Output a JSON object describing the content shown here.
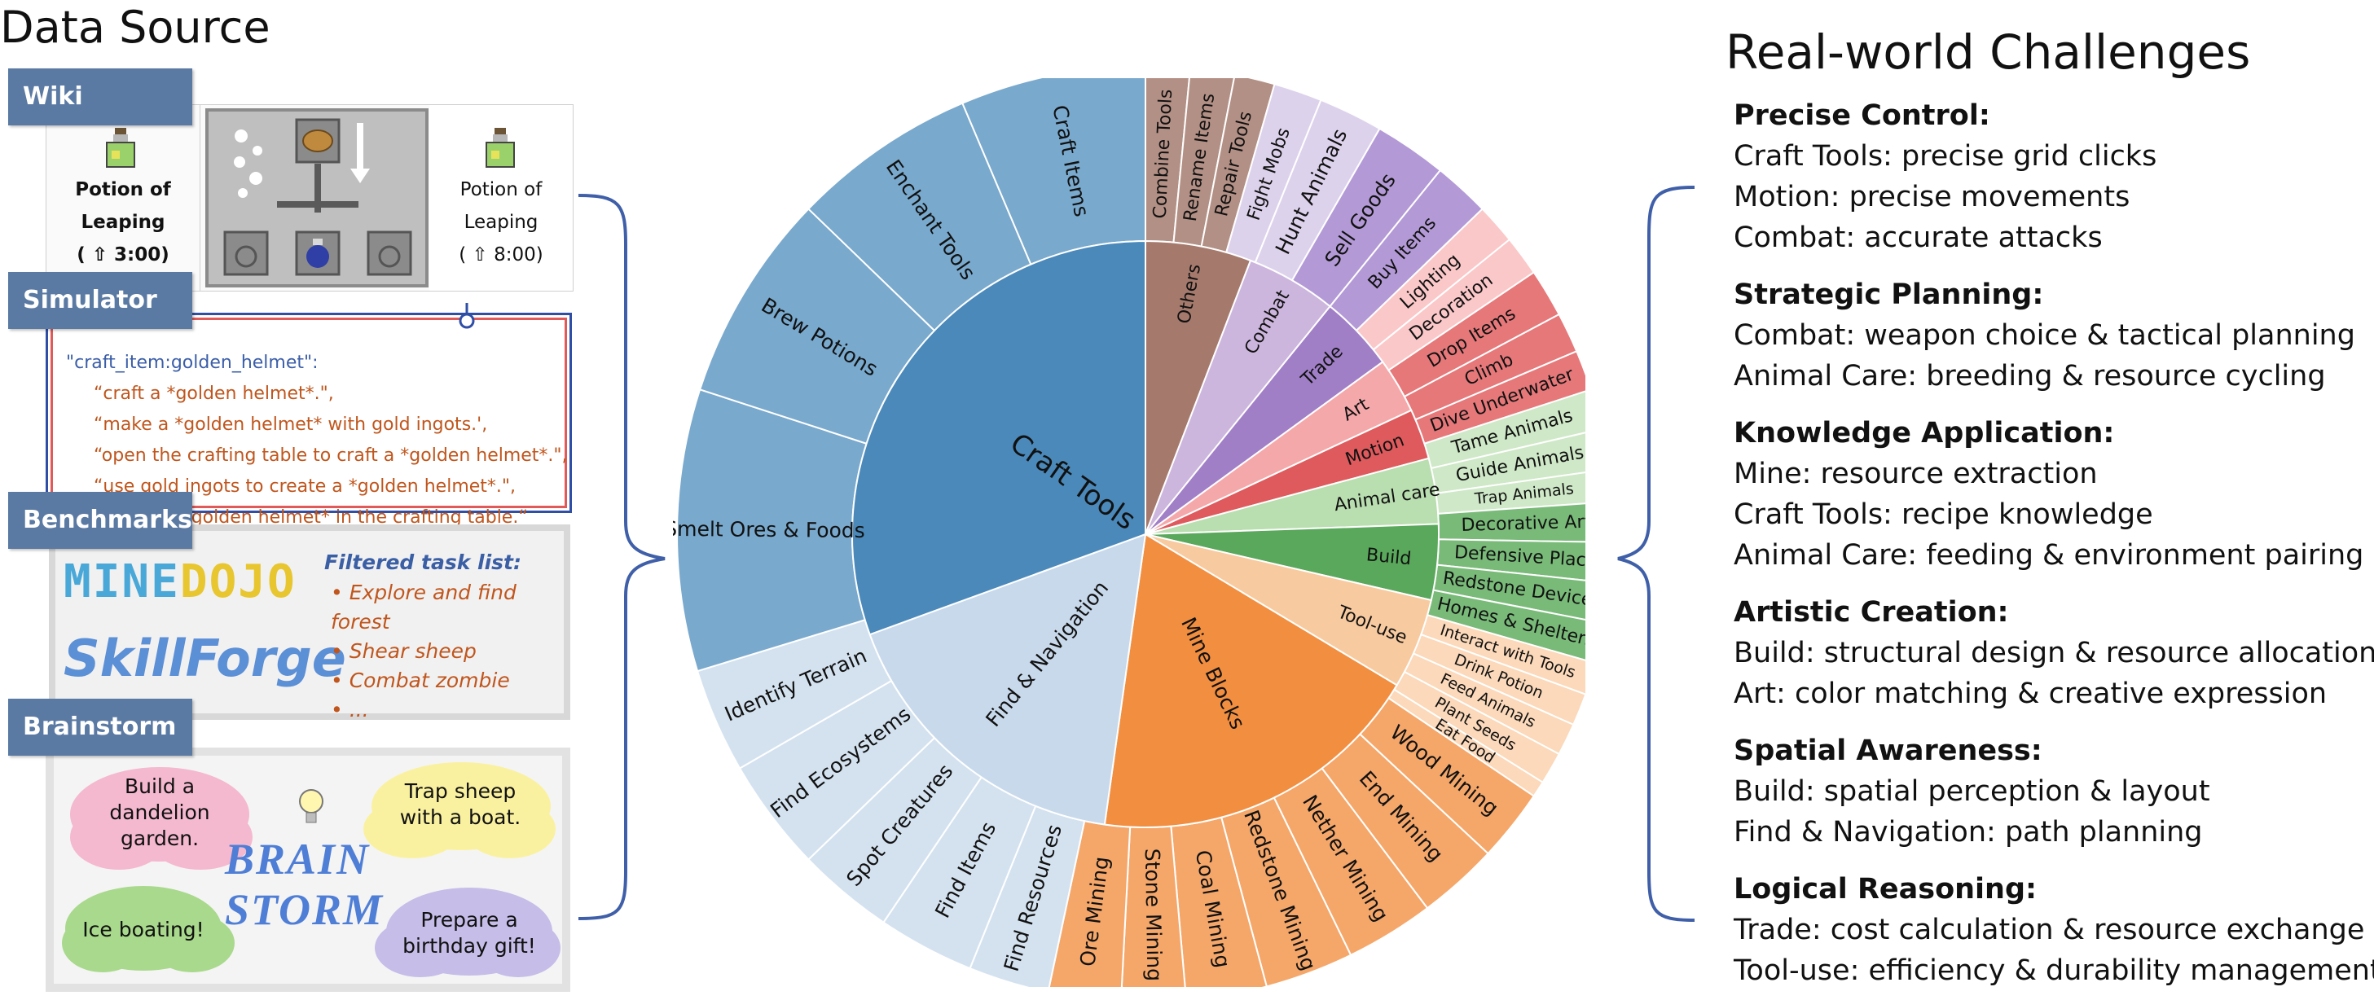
{
  "titles": {
    "data_source": "Data Source",
    "real_world": "Real-world Challenges"
  },
  "tabs": {
    "wiki": "Wiki",
    "simulator": "Simulator",
    "benchmarks": "Benchmarks",
    "brainstorm": "Brainstorm"
  },
  "wiki": {
    "left_name_1": "Potion of",
    "left_name_2": "Leaping",
    "left_time": "( ⇧ 3:00)",
    "right_name_1": "Potion of",
    "right_name_2": "Leaping",
    "right_time": "( ⇧ 8:00)"
  },
  "simulator": {
    "key": "\"craft_item:golden_helmet\":",
    "lines": [
      "“craft a *golden helmet*.\",",
      "“make a *golden helmet* with gold ingots.',",
      "“open the crafting table to craft a *golden helmet*.\",",
      "“use gold ingots to create a *golden helmet*.\",",
      "“create a *golden helmet* in the crafting table.“"
    ]
  },
  "benchmarks": {
    "logo_a": "MINE",
    "logo_b": "DOJO",
    "logo2": "SkillForge",
    "filtered_title": "Filtered task list:",
    "tasks": [
      "Explore and find forest",
      "Shear sheep",
      "Combat zombie",
      "..."
    ]
  },
  "brainstorm": {
    "clouds": [
      "Build a dandelion garden.",
      "Trap sheep with a boat.",
      "Ice boating!",
      "Prepare a birthday gift!"
    ],
    "word1": "BRAIN",
    "word2": "STORM"
  },
  "colors": {
    "blue_dark": "#4a89ba",
    "blue_mid": "#79a9cd",
    "blue_light": "#c8d9ec",
    "orange": "#f28e3f",
    "orange_light": "#f8caa0",
    "green": "#59a85b",
    "green_light": "#b9deb0",
    "red": "#de5a5d",
    "red_light": "#f8b9ba",
    "purple": "#a07fc7",
    "purple_light": "#ddd2ec",
    "brown": "#a57a6d",
    "tab": "#5b7aa3",
    "bracket": "#3f5fa8"
  },
  "chart_data": {
    "type": "sunburst",
    "inner": [
      {
        "label": "Others",
        "color": "#a57a6d"
      },
      {
        "label": "Combat",
        "color": "#cdb6dd"
      },
      {
        "label": "Trade",
        "color": "#a07fc7"
      },
      {
        "label": "Art",
        "color": "#f5a8aa"
      },
      {
        "label": "Motion",
        "color": "#de5a5d"
      },
      {
        "label": "Animal care",
        "color": "#b9deb0"
      },
      {
        "label": "Build",
        "color": "#59a85b"
      },
      {
        "label": "Tool-use",
        "color": "#f8caa0"
      },
      {
        "label": "Mine Blocks",
        "color": "#f28e3f"
      },
      {
        "label": "Find & Navigation",
        "color": "#c8d9ec"
      },
      {
        "label": "Craft Tools",
        "color": "#4a89ba"
      }
    ],
    "outer": [
      {
        "label": "Combine Tools",
        "color": "#b39085"
      },
      {
        "label": "Rename Items",
        "color": "#b39085"
      },
      {
        "label": "Repair Tools",
        "color": "#b39085"
      },
      {
        "label": "Fight Mobs",
        "color": "#ddd2ec"
      },
      {
        "label": "Hunt Animals",
        "color": "#ddd2ec"
      },
      {
        "label": "Sell Goods",
        "color": "#b39ad6"
      },
      {
        "label": "Buy Items",
        "color": "#b39ad6"
      },
      {
        "label": "Lighting",
        "color": "#fbc8c9"
      },
      {
        "label": "Decoration",
        "color": "#fbc8c9"
      },
      {
        "label": "Drop Items",
        "color": "#e6787a"
      },
      {
        "label": "Climb",
        "color": "#e6787a"
      },
      {
        "label": "Dive Underwater",
        "color": "#e6787a"
      },
      {
        "label": "Tame Animals",
        "color": "#cfe8c7"
      },
      {
        "label": "Guide Animals",
        "color": "#cfe8c7"
      },
      {
        "label": "Trap Animals",
        "color": "#cfe8c7"
      },
      {
        "label": "Decorative Art",
        "color": "#79ba79"
      },
      {
        "label": "Defensive Place",
        "color": "#79ba79"
      },
      {
        "label": "Redstone Devices",
        "color": "#79ba79"
      },
      {
        "label": "Homes & Shelters",
        "color": "#79ba79"
      },
      {
        "label": "Interact with Tools",
        "color": "#fbd9ba"
      },
      {
        "label": "Drink Potion",
        "color": "#fbd9ba"
      },
      {
        "label": "Feed Animals",
        "color": "#fbd9ba"
      },
      {
        "label": "Plant Seeds",
        "color": "#fbd9ba"
      },
      {
        "label": "Eat Food",
        "color": "#fbd9ba"
      },
      {
        "label": "Wood Mining",
        "color": "#f5a76a"
      },
      {
        "label": "End Mining",
        "color": "#f5a76a"
      },
      {
        "label": "Nether Mining",
        "color": "#f5a76a"
      },
      {
        "label": "Redstone Mining",
        "color": "#f5a76a"
      },
      {
        "label": "Coal Mining",
        "color": "#f5a76a"
      },
      {
        "label": "Stone Mining",
        "color": "#f5a76a"
      },
      {
        "label": "Ore Mining",
        "color": "#f5a76a"
      },
      {
        "label": "Find Resources",
        "color": "#d4e2f0"
      },
      {
        "label": "Find Items",
        "color": "#d4e2f0"
      },
      {
        "label": "Spot Creatures",
        "color": "#d4e2f0"
      },
      {
        "label": "Find Ecosystems",
        "color": "#d4e2f0"
      },
      {
        "label": "Identify Terrain",
        "color": "#d4e2f0"
      },
      {
        "label": "Smelt Ores & Foods",
        "color": "#79a9cd"
      },
      {
        "label": "Brew Potions",
        "color": "#79a9cd"
      },
      {
        "label": "Enchant Tools",
        "color": "#79a9cd"
      },
      {
        "label": "Craft Items",
        "color": "#79a9cd"
      }
    ]
  },
  "challenges": [
    {
      "heading": "Precise Control:",
      "lines": [
        "Craft Tools: precise grid clicks",
        "Motion: precise movements",
        "Combat: accurate attacks"
      ]
    },
    {
      "heading": "Strategic Planning:",
      "lines": [
        "Combat: weapon choice & tactical planning",
        "Animal Care: breeding & resource cycling"
      ]
    },
    {
      "heading": "Knowledge Application:",
      "lines": [
        "Mine: resource extraction",
        "Craft Tools: recipe knowledge",
        "Animal Care: feeding & environment pairing"
      ]
    },
    {
      "heading": "Artistic Creation:",
      "lines": [
        "Build: structural design & resource allocation",
        "Art: color matching & creative expression"
      ]
    },
    {
      "heading": "Spatial Awareness:",
      "lines": [
        "Build: spatial perception & layout",
        "Find & Navigation: path planning"
      ]
    },
    {
      "heading": "Logical Reasoning:",
      "lines": [
        "Trade: cost calculation & resource exchange",
        "Tool-use: efficiency & durability management"
      ]
    }
  ]
}
